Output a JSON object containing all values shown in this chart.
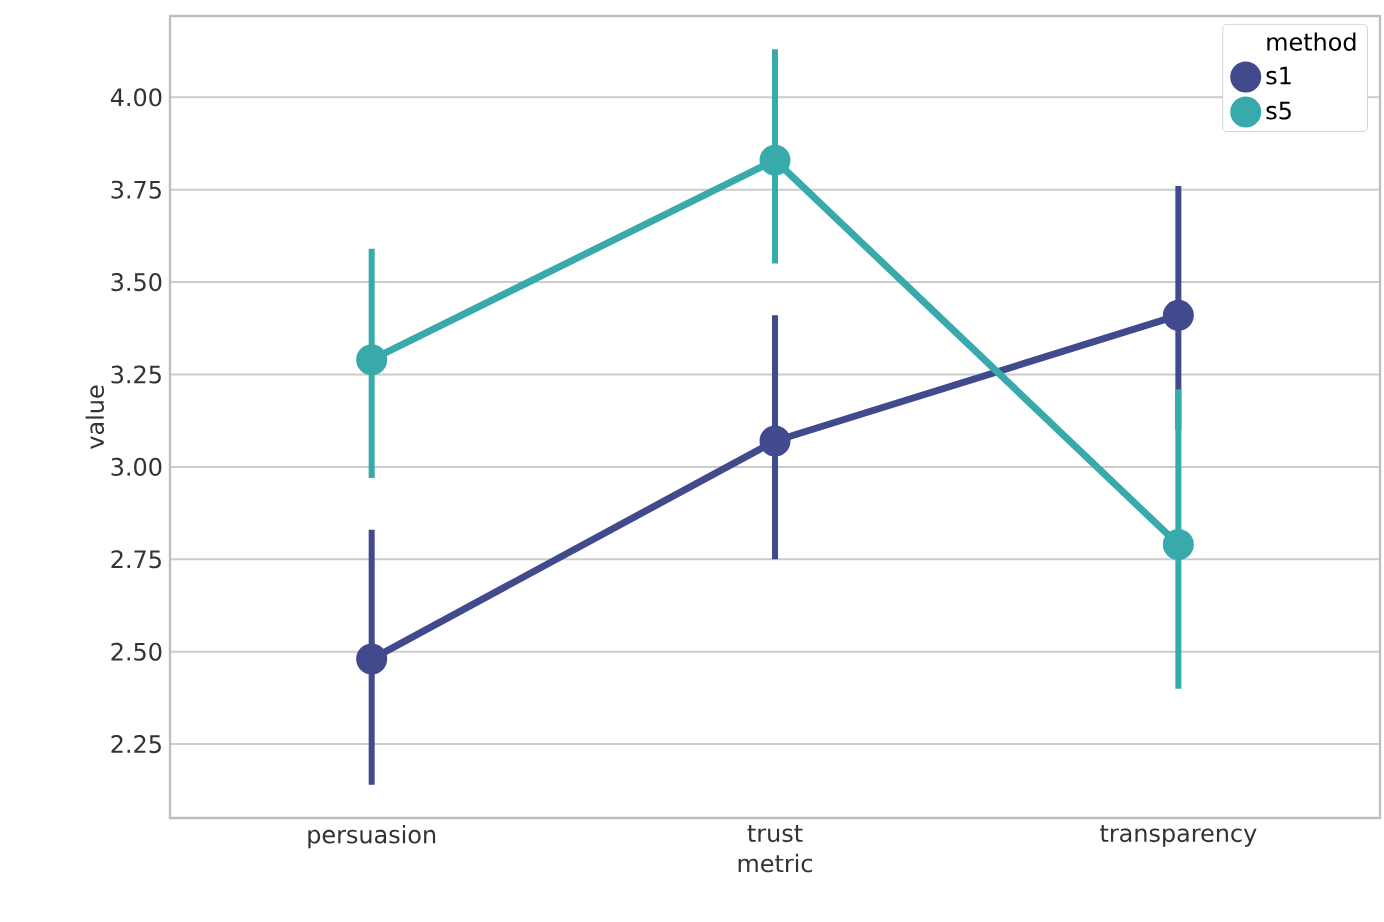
{
  "chart_data": {
    "type": "line",
    "xlabel": "metric",
    "ylabel": "value",
    "legend_title": "method",
    "categories": [
      "persuasion",
      "trust",
      "transparency"
    ],
    "series": [
      {
        "name": "s1",
        "color": "#404a8d",
        "values": [
          2.48,
          3.07,
          3.41
        ],
        "errors": [
          [
            2.14,
            2.83
          ],
          [
            2.75,
            3.41
          ],
          [
            3.1,
            3.76
          ]
        ]
      },
      {
        "name": "s5",
        "color": "#38aaac",
        "values": [
          3.29,
          3.83,
          2.79
        ],
        "errors": [
          [
            2.97,
            3.59
          ],
          [
            3.55,
            4.13
          ],
          [
            2.4,
            3.21
          ]
        ]
      }
    ],
    "ylim": [
      2.05,
      4.22
    ],
    "yticks": [
      {
        "value": 2.25,
        "label": "2.25"
      },
      {
        "value": 2.5,
        "label": "2.50"
      },
      {
        "value": 2.75,
        "label": "2.75"
      },
      {
        "value": 3.0,
        "label": "3.00"
      },
      {
        "value": 3.25,
        "label": "3.25"
      },
      {
        "value": 3.5,
        "label": "3.50"
      },
      {
        "value": 3.75,
        "label": "3.75"
      },
      {
        "value": 4.0,
        "label": "4.00"
      }
    ],
    "grid": "y",
    "legend": "top right",
    "marker": "circle",
    "line_style": "solid"
  }
}
